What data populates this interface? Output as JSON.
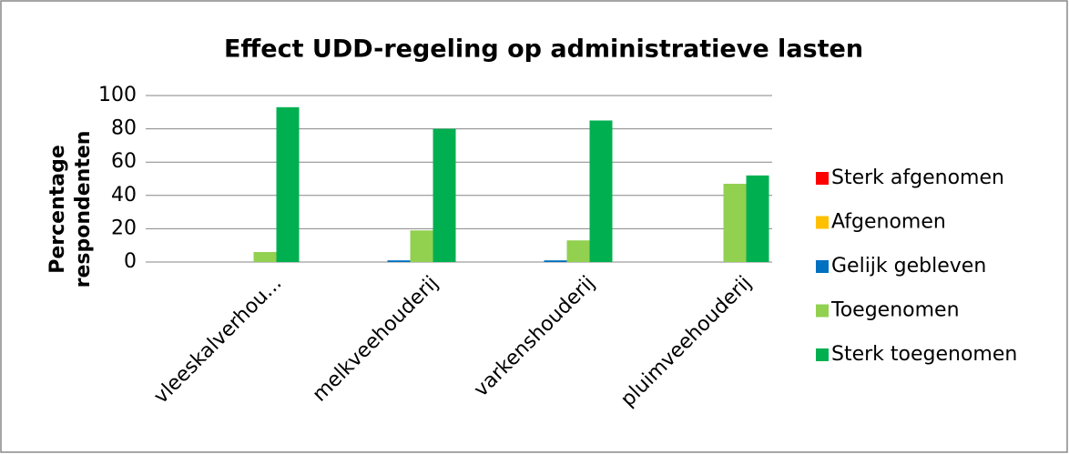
{
  "chart_data": {
    "type": "bar",
    "title": "Effect UDD-regeling op administratieve lasten",
    "y_label": [
      "Percentage",
      "respondenten"
    ],
    "categories": [
      "vleeskalverhou...",
      "melkveehouderij",
      "varkenshouderij",
      "pluimveehouderij"
    ],
    "series": [
      {
        "name": "Sterk afgenomen",
        "color": "#ff0000",
        "values": [
          0,
          0,
          0,
          0
        ]
      },
      {
        "name": "Afgenomen",
        "color": "#ffc000",
        "values": [
          0,
          0,
          0,
          0
        ]
      },
      {
        "name": "Gelijk gebleven",
        "color": "#0070c0",
        "values": [
          0,
          1,
          1,
          0
        ]
      },
      {
        "name": "Toegenomen",
        "color": "#92d050",
        "values": [
          6,
          19,
          13,
          47
        ]
      },
      {
        "name": "Sterk toegenomen",
        "color": "#00b050",
        "values": [
          93,
          80,
          85,
          52
        ]
      }
    ],
    "ylim": [
      0,
      100
    ],
    "yticks": [
      0,
      20,
      40,
      60,
      80,
      100
    ],
    "grid": true,
    "legend": "right"
  }
}
